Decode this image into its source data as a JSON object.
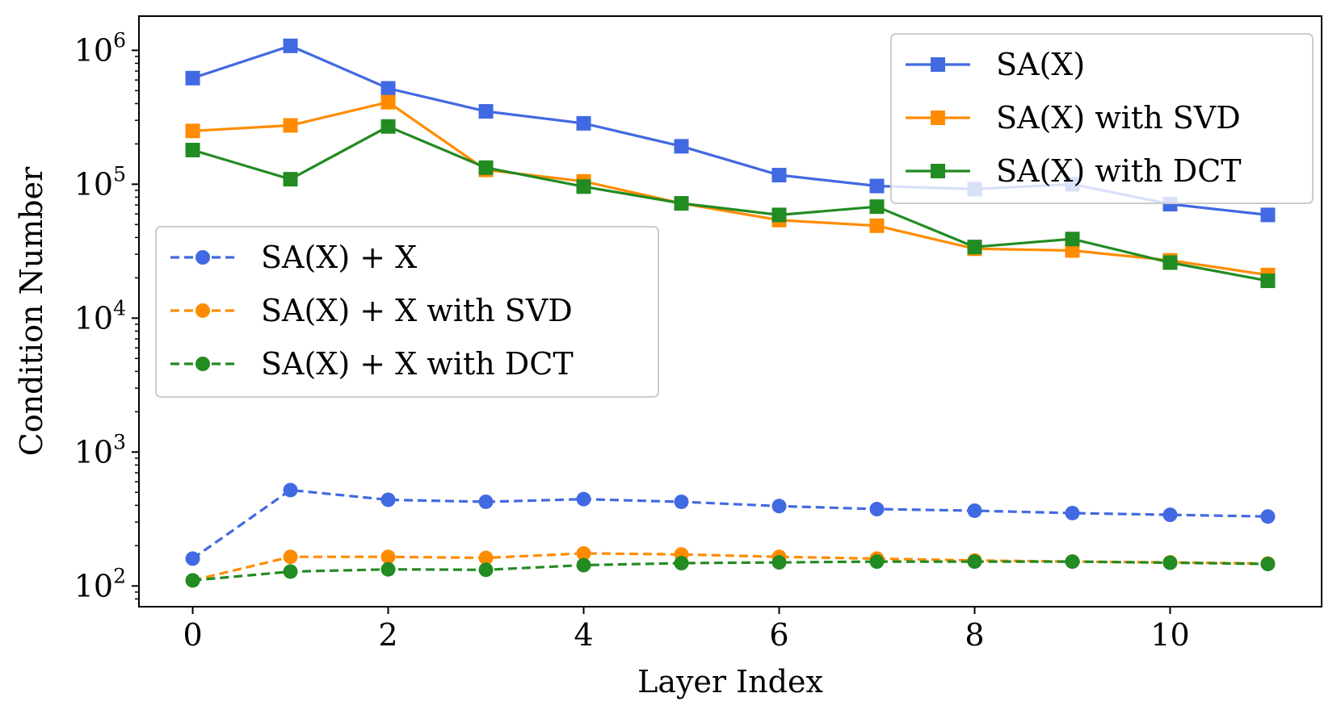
{
  "chart_data": {
    "type": "line",
    "title": "",
    "xlabel": "Layer Index",
    "ylabel": "Condition Number",
    "yscale": "log",
    "xlim": [
      -0.55,
      11.55
    ],
    "ylim": [
      70,
      1800000
    ],
    "x": [
      0,
      1,
      2,
      3,
      4,
      5,
      6,
      7,
      8,
      9,
      10,
      11
    ],
    "xticks": [
      {
        "value": 0,
        "label": "0"
      },
      {
        "value": 2,
        "label": "2"
      },
      {
        "value": 4,
        "label": "4"
      },
      {
        "value": 6,
        "label": "6"
      },
      {
        "value": 8,
        "label": "8"
      },
      {
        "value": 10,
        "label": "10"
      }
    ],
    "yticks": [
      {
        "value": 100,
        "base": "10",
        "exp": "2"
      },
      {
        "value": 1000,
        "base": "10",
        "exp": "3"
      },
      {
        "value": 10000,
        "base": "10",
        "exp": "4"
      },
      {
        "value": 100000,
        "base": "10",
        "exp": "5"
      },
      {
        "value": 1000000,
        "base": "10",
        "exp": "6"
      }
    ],
    "grid": false,
    "series": [
      {
        "name": "SA(X)",
        "color": "#4169e1",
        "marker": "square",
        "dash": "solid",
        "legend": "top-right",
        "values": [
          620000,
          1080000,
          520000,
          350000,
          285000,
          192000,
          117000,
          97000,
          92000,
          100000,
          71000,
          59000
        ]
      },
      {
        "name": "SA(X) with SVD",
        "color": "#ff8c00",
        "marker": "square",
        "dash": "solid",
        "legend": "top-right",
        "values": [
          250000,
          275000,
          410000,
          128000,
          105000,
          72000,
          54000,
          49000,
          33000,
          32000,
          27000,
          21000
        ]
      },
      {
        "name": "SA(X) with DCT",
        "color": "#228b22",
        "marker": "square",
        "dash": "solid",
        "legend": "top-right",
        "values": [
          180000,
          109000,
          270000,
          133000,
          96000,
          72000,
          59000,
          68000,
          34000,
          39000,
          26000,
          19000
        ]
      },
      {
        "name": "SA(X) + X",
        "color": "#4169e1",
        "marker": "circle",
        "dash": "dashed",
        "legend": "center-left",
        "values": [
          160,
          520,
          440,
          425,
          445,
          425,
          395,
          375,
          365,
          350,
          340,
          330
        ]
      },
      {
        "name": "SA(X) + X with SVD",
        "color": "#ff8c00",
        "marker": "circle",
        "dash": "dashed",
        "legend": "center-left",
        "values": [
          110,
          165,
          165,
          162,
          175,
          172,
          165,
          160,
          155,
          152,
          150,
          147
        ]
      },
      {
        "name": "SA(X) + X with DCT",
        "color": "#228b22",
        "marker": "circle",
        "dash": "dashed",
        "legend": "center-left",
        "values": [
          110,
          128,
          133,
          132,
          143,
          148,
          150,
          152,
          152,
          152,
          149,
          146
        ]
      }
    ]
  }
}
